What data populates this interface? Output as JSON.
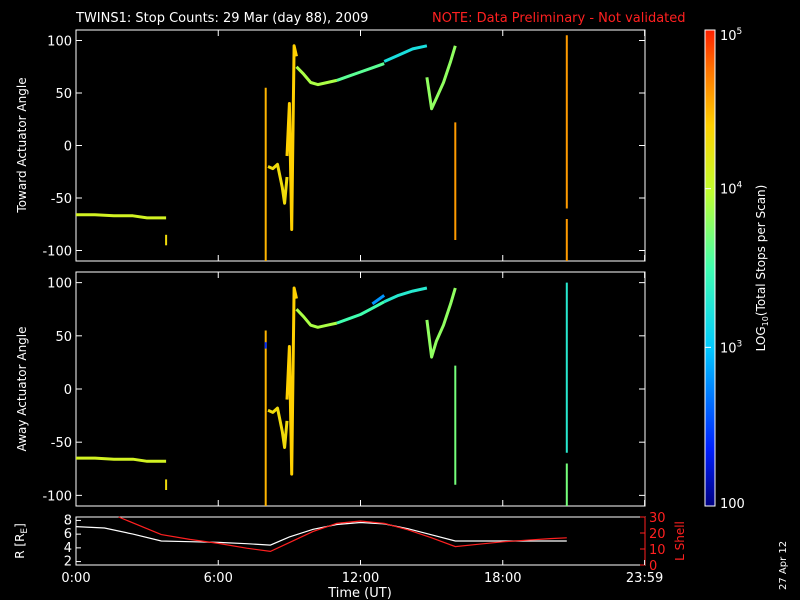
{
  "header": {
    "title": "TWINS1: Stop Counts: 29 Mar (day  88), 2009",
    "note": "NOTE: Data Preliminary - Not validated"
  },
  "date_stamp": "27 Apr 12",
  "colors": {
    "background": "#000000",
    "foreground": "#ffffff",
    "note": "#ff2020",
    "ephem_r": "#ffffff",
    "ephem_l": "#ff2020"
  },
  "chart_data": [
    {
      "type": "heatmap",
      "id": "toward",
      "ylabel": "Toward Actuator Angle",
      "ylim": [
        -110,
        110
      ],
      "yticks": [
        -100,
        -50,
        0,
        50,
        100
      ],
      "xlim": [
        0,
        24
      ],
      "log_color_range": [
        2,
        5
      ],
      "segments": [
        {
          "x": [
            0.0,
            0.8,
            1.6,
            2.4,
            3.0,
            3.8
          ],
          "y": [
            -66,
            -66,
            -67,
            -67,
            -69,
            -69
          ],
          "c": 4.1
        },
        {
          "x": [
            3.8,
            3.8
          ],
          "y": [
            -85,
            -95
          ],
          "c": 4.3
        },
        {
          "x": [
            8.0,
            8.0
          ],
          "y": [
            -110,
            55
          ],
          "c": 4.5
        },
        {
          "x": [
            8.1,
            8.3,
            8.5,
            8.7,
            8.8,
            8.9
          ],
          "y": [
            -20,
            -22,
            -18,
            -40,
            -55,
            -30
          ],
          "c": 4.3
        },
        {
          "x": [
            8.9,
            9.0,
            9.1,
            9.2,
            9.3
          ],
          "y": [
            -10,
            40,
            -80,
            95,
            85
          ],
          "c": 4.4
        },
        {
          "x": [
            9.3,
            9.6,
            9.9,
            10.2,
            10.6,
            11.0
          ],
          "y": [
            75,
            68,
            60,
            58,
            60,
            62
          ],
          "c": 3.9
        },
        {
          "x": [
            11.0,
            11.5,
            12.0,
            12.5,
            13.0
          ],
          "y": [
            62,
            66,
            70,
            74,
            78
          ],
          "c": 3.6
        },
        {
          "x": [
            13.0,
            13.6,
            14.2,
            14.8
          ],
          "y": [
            80,
            86,
            92,
            95
          ],
          "c": 3.2
        },
        {
          "x": [
            14.8,
            15.0,
            15.2,
            15.5,
            15.8,
            16.0
          ],
          "y": [
            65,
            35,
            45,
            60,
            80,
            95
          ],
          "c": 3.8
        },
        {
          "x": [
            16.0,
            16.0
          ],
          "y": [
            -90,
            22
          ],
          "c": 4.6
        },
        {
          "x": [
            20.7,
            20.7
          ],
          "y": [
            105,
            -60
          ],
          "c": 4.6
        },
        {
          "x": [
            20.7,
            20.7
          ],
          "y": [
            -70,
            -110
          ],
          "c": 4.6
        }
      ]
    },
    {
      "type": "heatmap",
      "id": "away",
      "ylabel": "Away Actuator Angle",
      "ylim": [
        -110,
        110
      ],
      "yticks": [
        -100,
        -50,
        0,
        50,
        100
      ],
      "xlim": [
        0,
        24
      ],
      "log_color_range": [
        2,
        5
      ],
      "segments": [
        {
          "x": [
            0.0,
            0.8,
            1.6,
            2.4,
            3.0,
            3.8
          ],
          "y": [
            -65,
            -65,
            -66,
            -66,
            -68,
            -68
          ],
          "c": 4.1
        },
        {
          "x": [
            3.8,
            3.8
          ],
          "y": [
            -85,
            -95
          ],
          "c": 4.3
        },
        {
          "x": [
            8.0,
            8.0
          ],
          "y": [
            -110,
            55
          ],
          "c": 4.5
        },
        {
          "x": [
            8.0,
            8.0
          ],
          "y": [
            38,
            44
          ],
          "c": 2.4
        },
        {
          "x": [
            8.1,
            8.3,
            8.5,
            8.7,
            8.8,
            8.9
          ],
          "y": [
            -20,
            -22,
            -18,
            -40,
            -55,
            -30
          ],
          "c": 4.3
        },
        {
          "x": [
            8.9,
            9.0,
            9.1,
            9.2,
            9.3
          ],
          "y": [
            -10,
            40,
            -80,
            95,
            85
          ],
          "c": 4.4
        },
        {
          "x": [
            9.3,
            9.6,
            9.9,
            10.2,
            10.6,
            11.0
          ],
          "y": [
            75,
            68,
            60,
            58,
            60,
            62
          ],
          "c": 3.9
        },
        {
          "x": [
            11.0,
            11.5,
            12.0,
            12.5,
            13.0
          ],
          "y": [
            62,
            66,
            70,
            76,
            82
          ],
          "c": 3.5
        },
        {
          "x": [
            12.5,
            13.0
          ],
          "y": [
            80,
            88
          ],
          "c": 2.8
        },
        {
          "x": [
            13.0,
            13.6,
            14.2,
            14.8
          ],
          "y": [
            82,
            88,
            92,
            95
          ],
          "c": 3.3
        },
        {
          "x": [
            14.8,
            15.0,
            15.2,
            15.5,
            15.8,
            16.0
          ],
          "y": [
            65,
            30,
            45,
            60,
            80,
            95
          ],
          "c": 3.8
        },
        {
          "x": [
            16.0,
            16.0
          ],
          "y": [
            -90,
            22
          ],
          "c": 3.7
        },
        {
          "x": [
            20.7,
            20.7
          ],
          "y": [
            100,
            -60
          ],
          "c": 3.3
        },
        {
          "x": [
            20.7,
            20.7
          ],
          "y": [
            -70,
            -110
          ],
          "c": 3.7
        }
      ]
    },
    {
      "type": "line",
      "id": "ephemeris",
      "ylabel_left": "R [R",
      "ylabel_left_sub": "E",
      "ylabel_left_end": "]",
      "ylabel_right": "L Shell",
      "ylim_left": [
        1.5,
        8.5
      ],
      "yticks_left": [
        2,
        4,
        6,
        8
      ],
      "ylim_right": [
        0,
        30
      ],
      "yticks_right": [
        0,
        10,
        20,
        30
      ],
      "xlim": [
        0,
        24
      ],
      "series": [
        {
          "axis": "left",
          "x": [
            0,
            1.2,
            2.4,
            3.6,
            4.8,
            6.0,
            7.2,
            8.2,
            9.0,
            10.0,
            11.0,
            12.0,
            13.0,
            14.0,
            15.0,
            16.0,
            17.0,
            18.0,
            19.0,
            20.0,
            20.7
          ],
          "y": [
            7.1,
            6.9,
            6.0,
            5.0,
            4.9,
            4.8,
            4.6,
            4.4,
            5.6,
            6.7,
            7.4,
            7.7,
            7.5,
            6.8,
            5.9,
            5.0,
            5.0,
            5.0,
            5.0,
            5.0,
            5.0
          ]
        },
        {
          "axis": "right",
          "x": [
            1.8,
            3.6,
            4.8,
            6.0,
            7.2,
            8.2,
            9.0,
            10.0,
            11.0,
            12.0,
            13.0,
            14.0,
            15.0,
            16.0,
            17.0,
            18.0,
            19.0,
            20.0,
            20.7
          ],
          "y": [
            30,
            19,
            16,
            13.5,
            10.5,
            8.5,
            14,
            21,
            26,
            27.5,
            26,
            22,
            17,
            11.5,
            13,
            14.5,
            15.5,
            16.5,
            17
          ]
        }
      ]
    }
  ],
  "xaxis": {
    "label": "Time (UT)",
    "ticks": [
      {
        "v": 0,
        "label": "0:00"
      },
      {
        "v": 6,
        "label": "6:00"
      },
      {
        "v": 12,
        "label": "12:00"
      },
      {
        "v": 18,
        "label": "18:00"
      },
      {
        "v": 23.983,
        "label": "23:59"
      }
    ]
  },
  "colorbar": {
    "label": "LOG",
    "label_sub": "10",
    "label_rest": "(Total Stops per Scan)",
    "ticks": [
      {
        "v": 5,
        "label": "10",
        "sup": "5"
      },
      {
        "v": 4,
        "label": "10",
        "sup": "4"
      },
      {
        "v": 3,
        "label": "10",
        "sup": "3"
      },
      {
        "v": 2,
        "label": "100",
        "sup": ""
      }
    ]
  }
}
